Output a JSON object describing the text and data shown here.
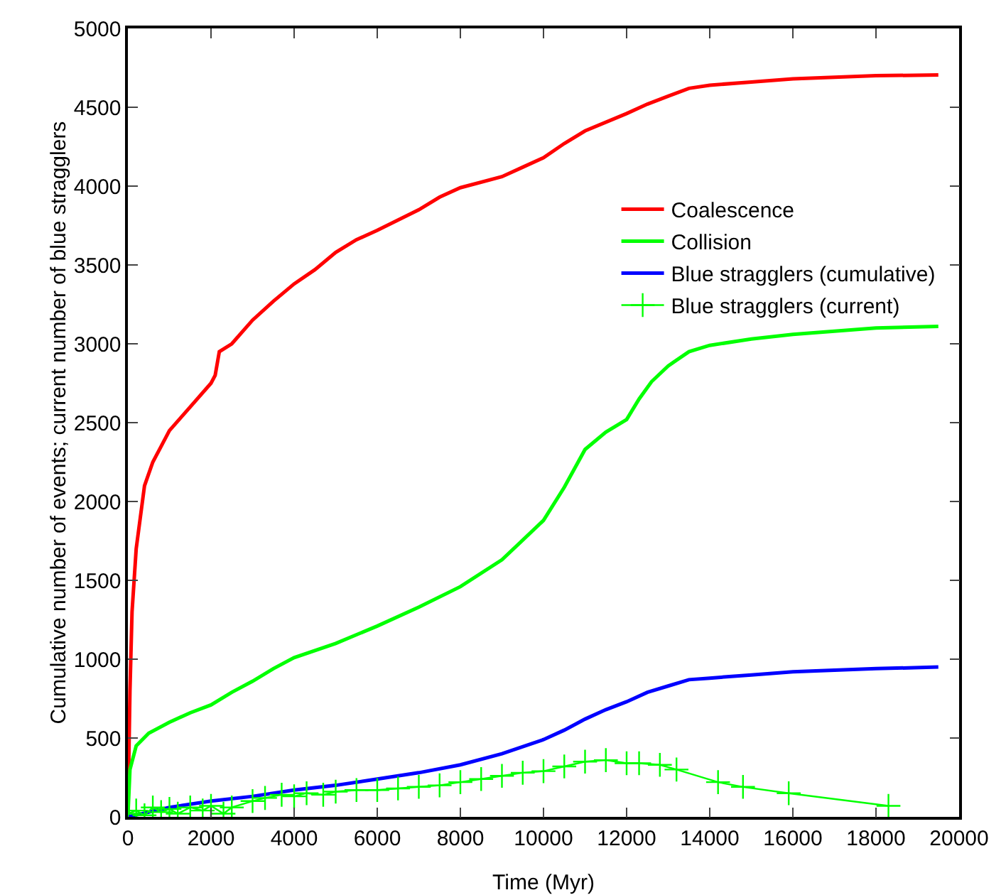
{
  "chart_data": {
    "type": "line",
    "xlabel": "Time (Myr)",
    "ylabel": "Cumulative number of events; current number of blue stragglers",
    "xlim": [
      0,
      20000
    ],
    "ylim": [
      0,
      5000
    ],
    "xticks": [
      0,
      2000,
      4000,
      6000,
      8000,
      10000,
      12000,
      14000,
      16000,
      18000,
      20000
    ],
    "yticks": [
      0,
      500,
      1000,
      1500,
      2000,
      2500,
      3000,
      3500,
      4000,
      4500,
      5000
    ],
    "grid": false,
    "legend": "top right",
    "marker": "none",
    "line_style": "solid",
    "series": [
      {
        "name": "Coalescence",
        "color": "#ff0000",
        "x": [
          0,
          50,
          100,
          200,
          400,
          600,
          800,
          1000,
          1500,
          2000,
          2100,
          2200,
          2500,
          3000,
          3500,
          4000,
          4500,
          5000,
          5500,
          6000,
          7000,
          7500,
          8000,
          9000,
          9500,
          10000,
          10500,
          11000,
          12000,
          12500,
          13000,
          13500,
          14000,
          15000,
          16000,
          17000,
          18000,
          19500
        ],
        "values": [
          0,
          800,
          1300,
          1700,
          2100,
          2250,
          2350,
          2450,
          2600,
          2750,
          2800,
          2950,
          3000,
          3150,
          3270,
          3380,
          3470,
          3580,
          3660,
          3720,
          3850,
          3930,
          3990,
          4060,
          4120,
          4180,
          4270,
          4350,
          4460,
          4520,
          4570,
          4620,
          4640,
          4660,
          4680,
          4690,
          4700,
          4705
        ]
      },
      {
        "name": "Collision",
        "color": "#00ff00",
        "x": [
          0,
          50,
          200,
          500,
          1000,
          1500,
          2000,
          2500,
          3000,
          3500,
          4000,
          5000,
          6000,
          7000,
          8000,
          9000,
          10000,
          10500,
          11000,
          11500,
          12000,
          12300,
          12600,
          13000,
          13500,
          14000,
          15000,
          16000,
          17000,
          18000,
          19500
        ],
        "values": [
          0,
          300,
          450,
          530,
          600,
          660,
          710,
          790,
          860,
          940,
          1010,
          1100,
          1210,
          1330,
          1460,
          1630,
          1880,
          2090,
          2330,
          2440,
          2520,
          2650,
          2760,
          2860,
          2950,
          2990,
          3030,
          3060,
          3080,
          3100,
          3110
        ]
      },
      {
        "name": "Blue stragglers (cumulative)",
        "color": "#0000ff",
        "x": [
          0,
          1000,
          2000,
          3000,
          4000,
          5000,
          6000,
          7000,
          8000,
          9000,
          10000,
          10500,
          11000,
          11500,
          12000,
          12500,
          13000,
          13500,
          14000,
          15000,
          16000,
          17000,
          18000,
          19500
        ],
        "values": [
          0,
          60,
          100,
          130,
          170,
          200,
          240,
          280,
          330,
          400,
          490,
          550,
          620,
          680,
          730,
          790,
          830,
          870,
          880,
          900,
          920,
          930,
          940,
          950
        ]
      },
      {
        "name": "Blue stragglers (current)",
        "color": "#00ff00",
        "marker": "cross",
        "x": [
          0,
          200,
          400,
          600,
          800,
          1000,
          1200,
          1500,
          1800,
          2000,
          2300,
          2500,
          3000,
          3300,
          3700,
          4000,
          4300,
          4700,
          5000,
          5500,
          6000,
          6500,
          7000,
          7500,
          8000,
          8500,
          9000,
          9500,
          10000,
          10500,
          11000,
          11500,
          12000,
          12300,
          12800,
          13200,
          14200,
          14800,
          15900,
          18300
        ],
        "values": [
          20,
          40,
          10,
          60,
          30,
          50,
          20,
          60,
          40,
          70,
          20,
          60,
          100,
          120,
          140,
          130,
          150,
          140,
          160,
          170,
          170,
          180,
          190,
          200,
          220,
          240,
          260,
          280,
          290,
          320,
          350,
          360,
          340,
          340,
          330,
          300,
          220,
          190,
          150,
          70
        ]
      }
    ]
  }
}
